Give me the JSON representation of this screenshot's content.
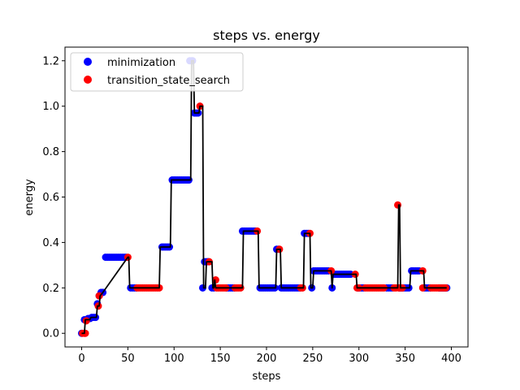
{
  "chart_data": {
    "type": "scatter",
    "title": "steps vs. energy",
    "xlabel": "steps",
    "ylabel": "energy",
    "xlim": [
      -18,
      418
    ],
    "ylim": [
      -0.06,
      1.26
    ],
    "xticks": [
      0,
      50,
      100,
      150,
      200,
      250,
      300,
      350,
      400
    ],
    "yticks": [
      0.0,
      0.2,
      0.4,
      0.6,
      0.8,
      1.0,
      1.2
    ],
    "ytick_labels": [
      "0.0",
      "0.2",
      "0.4",
      "0.6",
      "0.8",
      "1.0",
      "1.2"
    ],
    "grid": false,
    "legend_position": "upper-left",
    "colors": {
      "minimization": "#0000ff",
      "transition_state_search": "#ff0000",
      "line": "#000000"
    },
    "line": {
      "x": [
        0,
        3,
        4,
        7,
        9,
        10,
        16,
        17,
        19,
        20,
        23,
        50,
        51,
        52,
        53,
        84,
        85,
        86,
        96,
        97,
        118,
        119,
        121,
        122,
        127,
        128,
        131,
        132,
        134,
        135,
        140,
        141,
        142,
        143,
        144,
        145,
        146,
        147,
        174,
        175,
        191,
        192,
        210,
        211,
        212,
        215,
        216,
        217,
        240,
        241,
        242,
        247,
        248,
        250,
        251,
        253,
        260,
        262,
        270,
        271,
        272,
        275,
        297,
        298,
        342,
        343,
        344,
        345,
        346,
        355,
        356,
        370,
        371,
        372,
        395
      ],
      "y": [
        0.0,
        0.0,
        0.06,
        0.06,
        0.06,
        0.07,
        0.07,
        0.12,
        0.12,
        0.165,
        0.18,
        0.335,
        0.335,
        0.2,
        0.2,
        0.2,
        0.38,
        0.38,
        0.38,
        0.675,
        0.675,
        1.2,
        1.2,
        0.97,
        0.97,
        1.0,
        1.0,
        0.2,
        0.2,
        0.315,
        0.315,
        0.315,
        0.2,
        0.2,
        0.235,
        0.2,
        0.2,
        0.2,
        0.2,
        0.45,
        0.45,
        0.2,
        0.2,
        0.37,
        0.37,
        0.37,
        0.2,
        0.2,
        0.2,
        0.44,
        0.44,
        0.44,
        0.2,
        0.2,
        0.275,
        0.275,
        0.275,
        0.275,
        0.275,
        0.2,
        0.26,
        0.26,
        0.26,
        0.2,
        0.2,
        0.565,
        0.565,
        0.2,
        0.2,
        0.2,
        0.275,
        0.275,
        0.2,
        0.2,
        0.2
      ]
    },
    "series": [
      {
        "name": "minimization",
        "points": [
          [
            0,
            0.0
          ],
          [
            3,
            0.06
          ],
          [
            7,
            0.065
          ],
          [
            9,
            0.065
          ],
          [
            11,
            0.07
          ],
          [
            13,
            0.07
          ],
          [
            15,
            0.07
          ],
          [
            17,
            0.13
          ],
          [
            19,
            0.165
          ],
          [
            21,
            0.18
          ],
          [
            23,
            0.18
          ],
          [
            26,
            0.335
          ],
          [
            28,
            0.335
          ],
          [
            30,
            0.335
          ],
          [
            32,
            0.335
          ],
          [
            34,
            0.335
          ],
          [
            36,
            0.335
          ],
          [
            38,
            0.335
          ],
          [
            40,
            0.335
          ],
          [
            42,
            0.335
          ],
          [
            44,
            0.335
          ],
          [
            46,
            0.335
          ],
          [
            48,
            0.335
          ],
          [
            53,
            0.2
          ],
          [
            55,
            0.2
          ],
          [
            57,
            0.2
          ],
          [
            59,
            0.2
          ],
          [
            87,
            0.38
          ],
          [
            89,
            0.38
          ],
          [
            91,
            0.38
          ],
          [
            93,
            0.38
          ],
          [
            95,
            0.38
          ],
          [
            98,
            0.675
          ],
          [
            100,
            0.675
          ],
          [
            102,
            0.675
          ],
          [
            104,
            0.675
          ],
          [
            106,
            0.675
          ],
          [
            108,
            0.675
          ],
          [
            110,
            0.675
          ],
          [
            112,
            0.675
          ],
          [
            114,
            0.675
          ],
          [
            116,
            0.675
          ],
          [
            117,
            1.2
          ],
          [
            119,
            1.2
          ],
          [
            120,
            1.2
          ],
          [
            122,
            0.97
          ],
          [
            124,
            0.97
          ],
          [
            126,
            0.97
          ],
          [
            131,
            0.2
          ],
          [
            133,
            0.315
          ],
          [
            135,
            0.315
          ],
          [
            137,
            0.315
          ],
          [
            141,
            0.2
          ],
          [
            143,
            0.2
          ],
          [
            157,
            0.2
          ],
          [
            159,
            0.2
          ],
          [
            161,
            0.2
          ],
          [
            163,
            0.2
          ],
          [
            165,
            0.2
          ],
          [
            174,
            0.45
          ],
          [
            176,
            0.45
          ],
          [
            178,
            0.45
          ],
          [
            180,
            0.45
          ],
          [
            182,
            0.45
          ],
          [
            184,
            0.45
          ],
          [
            186,
            0.45
          ],
          [
            188,
            0.45
          ],
          [
            193,
            0.2
          ],
          [
            195,
            0.2
          ],
          [
            197,
            0.2
          ],
          [
            199,
            0.2
          ],
          [
            201,
            0.2
          ],
          [
            203,
            0.2
          ],
          [
            205,
            0.2
          ],
          [
            207,
            0.2
          ],
          [
            209,
            0.2
          ],
          [
            211,
            0.37
          ],
          [
            213,
            0.37
          ],
          [
            216,
            0.2
          ],
          [
            218,
            0.2
          ],
          [
            220,
            0.2
          ],
          [
            222,
            0.2
          ],
          [
            224,
            0.2
          ],
          [
            226,
            0.2
          ],
          [
            228,
            0.2
          ],
          [
            230,
            0.2
          ],
          [
            232,
            0.2
          ],
          [
            234,
            0.2
          ],
          [
            236,
            0.2
          ],
          [
            241,
            0.44
          ],
          [
            243,
            0.44
          ],
          [
            245,
            0.44
          ],
          [
            249,
            0.2
          ],
          [
            251,
            0.275
          ],
          [
            253,
            0.275
          ],
          [
            255,
            0.275
          ],
          [
            257,
            0.275
          ],
          [
            259,
            0.275
          ],
          [
            261,
            0.275
          ],
          [
            263,
            0.275
          ],
          [
            265,
            0.275
          ],
          [
            267,
            0.275
          ],
          [
            271,
            0.2
          ],
          [
            273,
            0.26
          ],
          [
            275,
            0.26
          ],
          [
            277,
            0.26
          ],
          [
            279,
            0.26
          ],
          [
            281,
            0.26
          ],
          [
            283,
            0.26
          ],
          [
            285,
            0.26
          ],
          [
            287,
            0.26
          ],
          [
            289,
            0.26
          ],
          [
            291,
            0.26
          ],
          [
            299,
            0.2
          ],
          [
            301,
            0.2
          ],
          [
            303,
            0.2
          ],
          [
            305,
            0.2
          ],
          [
            330,
            0.2
          ],
          [
            332,
            0.2
          ],
          [
            334,
            0.2
          ],
          [
            336,
            0.2
          ],
          [
            344,
            0.2
          ],
          [
            346,
            0.2
          ],
          [
            348,
            0.2
          ],
          [
            350,
            0.2
          ],
          [
            352,
            0.2
          ],
          [
            354,
            0.2
          ],
          [
            357,
            0.275
          ],
          [
            359,
            0.275
          ],
          [
            361,
            0.275
          ],
          [
            363,
            0.275
          ],
          [
            365,
            0.275
          ],
          [
            371,
            0.2
          ],
          [
            373,
            0.2
          ],
          [
            375,
            0.2
          ],
          [
            377,
            0.2
          ],
          [
            387,
            0.2
          ],
          [
            389,
            0.2
          ],
          [
            391,
            0.2
          ],
          [
            393,
            0.2
          ],
          [
            395,
            0.2
          ]
        ]
      },
      {
        "name": "transition_state_search",
        "points": [
          [
            1,
            0.0
          ],
          [
            3,
            0.0
          ],
          [
            4,
            0.0
          ],
          [
            5,
            0.055
          ],
          [
            18,
            0.12
          ],
          [
            19,
            0.165
          ],
          [
            50,
            0.335
          ],
          [
            60,
            0.2
          ],
          [
            62,
            0.2
          ],
          [
            64,
            0.2
          ],
          [
            66,
            0.2
          ],
          [
            68,
            0.2
          ],
          [
            70,
            0.2
          ],
          [
            72,
            0.2
          ],
          [
            74,
            0.2
          ],
          [
            76,
            0.2
          ],
          [
            78,
            0.2
          ],
          [
            80,
            0.2
          ],
          [
            82,
            0.2
          ],
          [
            84,
            0.2
          ],
          [
            128,
            1.0
          ],
          [
            138,
            0.315
          ],
          [
            145,
            0.235
          ],
          [
            146,
            0.2
          ],
          [
            148,
            0.2
          ],
          [
            150,
            0.2
          ],
          [
            152,
            0.2
          ],
          [
            154,
            0.2
          ],
          [
            156,
            0.2
          ],
          [
            166,
            0.2
          ],
          [
            168,
            0.2
          ],
          [
            170,
            0.2
          ],
          [
            172,
            0.2
          ],
          [
            190,
            0.45
          ],
          [
            214,
            0.37
          ],
          [
            237,
            0.2
          ],
          [
            239,
            0.2
          ],
          [
            247,
            0.44
          ],
          [
            270,
            0.275
          ],
          [
            296,
            0.26
          ],
          [
            298,
            0.2
          ],
          [
            300,
            0.2
          ],
          [
            307,
            0.2
          ],
          [
            309,
            0.2
          ],
          [
            311,
            0.2
          ],
          [
            313,
            0.2
          ],
          [
            315,
            0.2
          ],
          [
            317,
            0.2
          ],
          [
            319,
            0.2
          ],
          [
            321,
            0.2
          ],
          [
            323,
            0.2
          ],
          [
            325,
            0.2
          ],
          [
            327,
            0.2
          ],
          [
            338,
            0.2
          ],
          [
            340,
            0.2
          ],
          [
            342,
            0.565
          ],
          [
            343,
            0.2
          ],
          [
            345,
            0.2
          ],
          [
            347,
            0.2
          ],
          [
            369,
            0.275
          ],
          [
            369,
            0.2
          ],
          [
            378,
            0.2
          ],
          [
            380,
            0.2
          ],
          [
            382,
            0.2
          ],
          [
            384,
            0.2
          ],
          [
            386,
            0.2
          ],
          [
            388,
            0.2
          ],
          [
            390,
            0.2
          ],
          [
            392,
            0.2
          ],
          [
            394,
            0.2
          ]
        ]
      }
    ]
  }
}
